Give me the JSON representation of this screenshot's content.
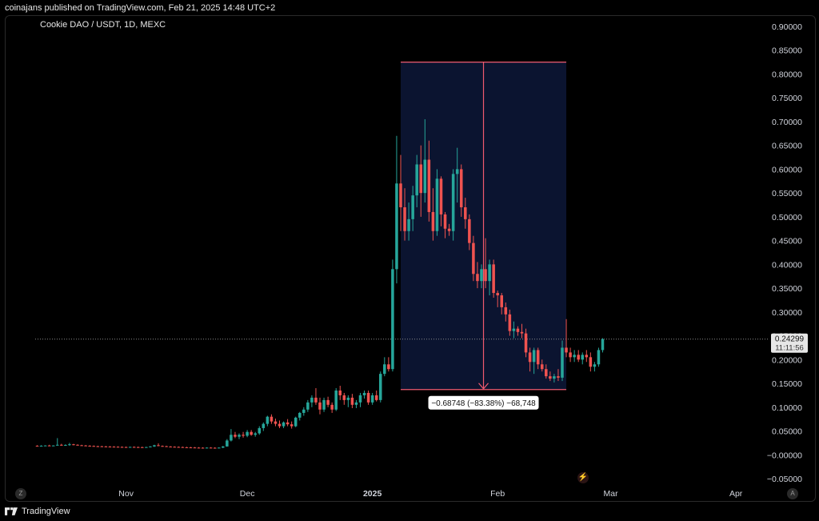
{
  "published_by": "coinajans published on TradingView.com, Feb 21, 2025 14:48 UTC+2",
  "symbol_title": "Cookie DAO / USDT, 1D, MEXC",
  "footer_brand": "TradingView",
  "time_axis_left_button": "Z",
  "price_axis_right_button": "A",
  "colors": {
    "bull": "#26a69a",
    "bear": "#ef5350",
    "measure_fill": "#0b1430",
    "measure_line": "#ef5a6f",
    "grid_text": "#d1d4dc",
    "background": "#000000"
  },
  "chart_data": {
    "type": "candlestick",
    "title": "Cookie DAO / USDT, 1D, MEXC",
    "interval": "1D",
    "exchange": "MEXC",
    "y_axis": {
      "side": "right",
      "ylim": [
        -0.05,
        0.9
      ],
      "tick_labels": [
        "0.90000",
        "0.85000",
        "0.80000",
        "0.75000",
        "0.70000",
        "0.65000",
        "0.60000",
        "0.55000",
        "0.50000",
        "0.45000",
        "0.40000",
        "0.35000",
        "0.30000",
        "0.25000",
        "0.20000",
        "0.15000",
        "0.10000",
        "0.05000",
        "−0.00000",
        "−0.05000"
      ],
      "tick_values": [
        0.9,
        0.85,
        0.8,
        0.75,
        0.7,
        0.65,
        0.6,
        0.55,
        0.5,
        0.45,
        0.4,
        0.35,
        0.3,
        0.25,
        0.2,
        0.15,
        0.1,
        0.05,
        0,
        -0.05
      ]
    },
    "x_axis": {
      "tick_labels": [
        {
          "label": "Nov",
          "day": 22,
          "bold": false
        },
        {
          "label": "Dec",
          "day": 52,
          "bold": false
        },
        {
          "label": "2025",
          "day": 83,
          "bold": true
        },
        {
          "label": "Feb",
          "day": 114,
          "bold": false
        },
        {
          "label": "Mar",
          "day": 142,
          "bold": false
        },
        {
          "label": "Apr",
          "day": 173,
          "bold": false
        }
      ],
      "day_range": [
        -0.5,
        180.5
      ]
    },
    "grid": false,
    "last_price": {
      "value": 0.24299,
      "label": "0.24299",
      "countdown": "11:11:56"
    },
    "measure": {
      "start_day": 90,
      "end_day": 131,
      "top_price": 0.825,
      "bottom_price": 0.137,
      "label": "−0.68748 (−83.38%) −68,748"
    },
    "candles": [
      {
        "d": 0,
        "o": 0.019,
        "h": 0.02,
        "l": 0.018,
        "c": 0.0185
      },
      {
        "d": 1,
        "o": 0.0185,
        "h": 0.02,
        "l": 0.018,
        "c": 0.019
      },
      {
        "d": 2,
        "o": 0.019,
        "h": 0.02,
        "l": 0.0185,
        "c": 0.0195
      },
      {
        "d": 3,
        "o": 0.0195,
        "h": 0.021,
        "l": 0.0185,
        "c": 0.019
      },
      {
        "d": 4,
        "o": 0.019,
        "h": 0.02,
        "l": 0.018,
        "c": 0.0195
      },
      {
        "d": 5,
        "o": 0.0195,
        "h": 0.035,
        "l": 0.019,
        "c": 0.021
      },
      {
        "d": 6,
        "o": 0.021,
        "h": 0.023,
        "l": 0.019,
        "c": 0.02
      },
      {
        "d": 7,
        "o": 0.02,
        "h": 0.022,
        "l": 0.019,
        "c": 0.0205
      },
      {
        "d": 8,
        "o": 0.0205,
        "h": 0.025,
        "l": 0.019,
        "c": 0.022
      },
      {
        "d": 9,
        "o": 0.022,
        "h": 0.023,
        "l": 0.02,
        "c": 0.021
      },
      {
        "d": 10,
        "o": 0.021,
        "h": 0.022,
        "l": 0.0195,
        "c": 0.02
      },
      {
        "d": 11,
        "o": 0.02,
        "h": 0.021,
        "l": 0.019,
        "c": 0.0195
      },
      {
        "d": 12,
        "o": 0.0195,
        "h": 0.0205,
        "l": 0.0185,
        "c": 0.019
      },
      {
        "d": 13,
        "o": 0.019,
        "h": 0.02,
        "l": 0.018,
        "c": 0.0185
      },
      {
        "d": 14,
        "o": 0.0185,
        "h": 0.0195,
        "l": 0.0175,
        "c": 0.018
      },
      {
        "d": 15,
        "o": 0.018,
        "h": 0.019,
        "l": 0.017,
        "c": 0.0178
      },
      {
        "d": 16,
        "o": 0.0178,
        "h": 0.0188,
        "l": 0.017,
        "c": 0.0175
      },
      {
        "d": 17,
        "o": 0.0175,
        "h": 0.0185,
        "l": 0.0165,
        "c": 0.0172
      },
      {
        "d": 18,
        "o": 0.0172,
        "h": 0.0182,
        "l": 0.0165,
        "c": 0.017
      },
      {
        "d": 19,
        "o": 0.017,
        "h": 0.018,
        "l": 0.016,
        "c": 0.0168
      },
      {
        "d": 20,
        "o": 0.0168,
        "h": 0.0178,
        "l": 0.016,
        "c": 0.0165
      },
      {
        "d": 21,
        "o": 0.0165,
        "h": 0.0175,
        "l": 0.0158,
        "c": 0.0163
      },
      {
        "d": 22,
        "o": 0.0163,
        "h": 0.0172,
        "l": 0.0155,
        "c": 0.016
      },
      {
        "d": 23,
        "o": 0.016,
        "h": 0.017,
        "l": 0.0155,
        "c": 0.0165
      },
      {
        "d": 24,
        "o": 0.0165,
        "h": 0.0175,
        "l": 0.0158,
        "c": 0.0162
      },
      {
        "d": 25,
        "o": 0.0162,
        "h": 0.0172,
        "l": 0.0155,
        "c": 0.016
      },
      {
        "d": 26,
        "o": 0.016,
        "h": 0.017,
        "l": 0.0152,
        "c": 0.0158
      },
      {
        "d": 27,
        "o": 0.0158,
        "h": 0.0168,
        "l": 0.015,
        "c": 0.0162
      },
      {
        "d": 28,
        "o": 0.0162,
        "h": 0.018,
        "l": 0.0155,
        "c": 0.0175
      },
      {
        "d": 29,
        "o": 0.0175,
        "h": 0.021,
        "l": 0.0165,
        "c": 0.02
      },
      {
        "d": 30,
        "o": 0.02,
        "h": 0.024,
        "l": 0.018,
        "c": 0.0185
      },
      {
        "d": 31,
        "o": 0.0185,
        "h": 0.0195,
        "l": 0.017,
        "c": 0.018
      },
      {
        "d": 32,
        "o": 0.018,
        "h": 0.019,
        "l": 0.0165,
        "c": 0.0172
      },
      {
        "d": 33,
        "o": 0.0172,
        "h": 0.0182,
        "l": 0.016,
        "c": 0.0168
      },
      {
        "d": 34,
        "o": 0.0168,
        "h": 0.0178,
        "l": 0.0158,
        "c": 0.0165
      },
      {
        "d": 35,
        "o": 0.0165,
        "h": 0.0175,
        "l": 0.0155,
        "c": 0.0162
      },
      {
        "d": 36,
        "o": 0.0162,
        "h": 0.0172,
        "l": 0.0152,
        "c": 0.0158
      },
      {
        "d": 37,
        "o": 0.0158,
        "h": 0.0168,
        "l": 0.015,
        "c": 0.0155
      },
      {
        "d": 38,
        "o": 0.0155,
        "h": 0.0165,
        "l": 0.0148,
        "c": 0.0153
      },
      {
        "d": 39,
        "o": 0.0153,
        "h": 0.0162,
        "l": 0.0145,
        "c": 0.015
      },
      {
        "d": 40,
        "o": 0.015,
        "h": 0.016,
        "l": 0.0142,
        "c": 0.0148
      },
      {
        "d": 41,
        "o": 0.0148,
        "h": 0.0158,
        "l": 0.014,
        "c": 0.0146
      },
      {
        "d": 42,
        "o": 0.0146,
        "h": 0.0156,
        "l": 0.014,
        "c": 0.015
      },
      {
        "d": 43,
        "o": 0.015,
        "h": 0.016,
        "l": 0.0143,
        "c": 0.0147
      },
      {
        "d": 44,
        "o": 0.0147,
        "h": 0.0157,
        "l": 0.014,
        "c": 0.0145
      },
      {
        "d": 45,
        "o": 0.0145,
        "h": 0.0155,
        "l": 0.0138,
        "c": 0.015
      },
      {
        "d": 46,
        "o": 0.015,
        "h": 0.0185,
        "l": 0.014,
        "c": 0.0175
      },
      {
        "d": 47,
        "o": 0.0175,
        "h": 0.033,
        "l": 0.017,
        "c": 0.03
      },
      {
        "d": 48,
        "o": 0.03,
        "h": 0.054,
        "l": 0.028,
        "c": 0.042
      },
      {
        "d": 49,
        "o": 0.042,
        "h": 0.048,
        "l": 0.035,
        "c": 0.038
      },
      {
        "d": 50,
        "o": 0.038,
        "h": 0.045,
        "l": 0.033,
        "c": 0.042
      },
      {
        "d": 51,
        "o": 0.042,
        "h": 0.048,
        "l": 0.036,
        "c": 0.04
      },
      {
        "d": 52,
        "o": 0.04,
        "h": 0.052,
        "l": 0.037,
        "c": 0.048
      },
      {
        "d": 53,
        "o": 0.048,
        "h": 0.052,
        "l": 0.04,
        "c": 0.042
      },
      {
        "d": 54,
        "o": 0.042,
        "h": 0.048,
        "l": 0.038,
        "c": 0.045
      },
      {
        "d": 55,
        "o": 0.045,
        "h": 0.06,
        "l": 0.042,
        "c": 0.056
      },
      {
        "d": 56,
        "o": 0.056,
        "h": 0.068,
        "l": 0.05,
        "c": 0.065
      },
      {
        "d": 57,
        "o": 0.065,
        "h": 0.082,
        "l": 0.06,
        "c": 0.08
      },
      {
        "d": 58,
        "o": 0.08,
        "h": 0.085,
        "l": 0.065,
        "c": 0.07
      },
      {
        "d": 59,
        "o": 0.07,
        "h": 0.076,
        "l": 0.06,
        "c": 0.065
      },
      {
        "d": 60,
        "o": 0.065,
        "h": 0.072,
        "l": 0.056,
        "c": 0.06
      },
      {
        "d": 61,
        "o": 0.06,
        "h": 0.07,
        "l": 0.056,
        "c": 0.068
      },
      {
        "d": 62,
        "o": 0.068,
        "h": 0.075,
        "l": 0.06,
        "c": 0.064
      },
      {
        "d": 63,
        "o": 0.064,
        "h": 0.07,
        "l": 0.055,
        "c": 0.06
      },
      {
        "d": 64,
        "o": 0.06,
        "h": 0.08,
        "l": 0.058,
        "c": 0.078
      },
      {
        "d": 65,
        "o": 0.078,
        "h": 0.09,
        "l": 0.072,
        "c": 0.088
      },
      {
        "d": 66,
        "o": 0.088,
        "h": 0.1,
        "l": 0.082,
        "c": 0.095
      },
      {
        "d": 67,
        "o": 0.095,
        "h": 0.115,
        "l": 0.09,
        "c": 0.11
      },
      {
        "d": 68,
        "o": 0.11,
        "h": 0.125,
        "l": 0.1,
        "c": 0.12
      },
      {
        "d": 69,
        "o": 0.12,
        "h": 0.14,
        "l": 0.105,
        "c": 0.11
      },
      {
        "d": 70,
        "o": 0.11,
        "h": 0.12,
        "l": 0.085,
        "c": 0.095
      },
      {
        "d": 71,
        "o": 0.095,
        "h": 0.12,
        "l": 0.09,
        "c": 0.115
      },
      {
        "d": 72,
        "o": 0.115,
        "h": 0.122,
        "l": 0.1,
        "c": 0.105
      },
      {
        "d": 73,
        "o": 0.105,
        "h": 0.11,
        "l": 0.088,
        "c": 0.095
      },
      {
        "d": 74,
        "o": 0.095,
        "h": 0.14,
        "l": 0.092,
        "c": 0.135
      },
      {
        "d": 75,
        "o": 0.135,
        "h": 0.145,
        "l": 0.115,
        "c": 0.125
      },
      {
        "d": 76,
        "o": 0.125,
        "h": 0.13,
        "l": 0.105,
        "c": 0.115
      },
      {
        "d": 77,
        "o": 0.115,
        "h": 0.125,
        "l": 0.1,
        "c": 0.12
      },
      {
        "d": 78,
        "o": 0.12,
        "h": 0.128,
        "l": 0.098,
        "c": 0.105
      },
      {
        "d": 79,
        "o": 0.105,
        "h": 0.115,
        "l": 0.098,
        "c": 0.11
      },
      {
        "d": 80,
        "o": 0.11,
        "h": 0.13,
        "l": 0.1,
        "c": 0.125
      },
      {
        "d": 81,
        "o": 0.125,
        "h": 0.135,
        "l": 0.118,
        "c": 0.13
      },
      {
        "d": 82,
        "o": 0.13,
        "h": 0.135,
        "l": 0.105,
        "c": 0.11
      },
      {
        "d": 83,
        "o": 0.11,
        "h": 0.13,
        "l": 0.105,
        "c": 0.125
      },
      {
        "d": 84,
        "o": 0.125,
        "h": 0.135,
        "l": 0.112,
        "c": 0.115
      },
      {
        "d": 85,
        "o": 0.115,
        "h": 0.175,
        "l": 0.11,
        "c": 0.17
      },
      {
        "d": 86,
        "o": 0.17,
        "h": 0.205,
        "l": 0.165,
        "c": 0.19
      },
      {
        "d": 87,
        "o": 0.19,
        "h": 0.205,
        "l": 0.175,
        "c": 0.18
      },
      {
        "d": 88,
        "o": 0.18,
        "h": 0.41,
        "l": 0.175,
        "c": 0.39
      },
      {
        "d": 89,
        "o": 0.39,
        "h": 0.67,
        "l": 0.36,
        "c": 0.57
      },
      {
        "d": 90,
        "o": 0.57,
        "h": 0.63,
        "l": 0.47,
        "c": 0.52
      },
      {
        "d": 91,
        "o": 0.52,
        "h": 0.56,
        "l": 0.45,
        "c": 0.47
      },
      {
        "d": 92,
        "o": 0.47,
        "h": 0.53,
        "l": 0.45,
        "c": 0.495
      },
      {
        "d": 93,
        "o": 0.495,
        "h": 0.565,
        "l": 0.47,
        "c": 0.545
      },
      {
        "d": 94,
        "o": 0.545,
        "h": 0.63,
        "l": 0.52,
        "c": 0.61
      },
      {
        "d": 95,
        "o": 0.61,
        "h": 0.65,
        "l": 0.5,
        "c": 0.55
      },
      {
        "d": 96,
        "o": 0.55,
        "h": 0.705,
        "l": 0.53,
        "c": 0.62
      },
      {
        "d": 97,
        "o": 0.62,
        "h": 0.66,
        "l": 0.49,
        "c": 0.51
      },
      {
        "d": 98,
        "o": 0.51,
        "h": 0.56,
        "l": 0.45,
        "c": 0.47
      },
      {
        "d": 99,
        "o": 0.47,
        "h": 0.6,
        "l": 0.46,
        "c": 0.58
      },
      {
        "d": 100,
        "o": 0.58,
        "h": 0.585,
        "l": 0.48,
        "c": 0.505
      },
      {
        "d": 101,
        "o": 0.505,
        "h": 0.51,
        "l": 0.455,
        "c": 0.475
      },
      {
        "d": 102,
        "o": 0.475,
        "h": 0.485,
        "l": 0.46,
        "c": 0.47
      },
      {
        "d": 103,
        "o": 0.47,
        "h": 0.6,
        "l": 0.45,
        "c": 0.59
      },
      {
        "d": 104,
        "o": 0.59,
        "h": 0.645,
        "l": 0.53,
        "c": 0.6
      },
      {
        "d": 105,
        "o": 0.6,
        "h": 0.61,
        "l": 0.5,
        "c": 0.52
      },
      {
        "d": 106,
        "o": 0.52,
        "h": 0.54,
        "l": 0.475,
        "c": 0.495
      },
      {
        "d": 107,
        "o": 0.495,
        "h": 0.505,
        "l": 0.43,
        "c": 0.445
      },
      {
        "d": 108,
        "o": 0.445,
        "h": 0.46,
        "l": 0.365,
        "c": 0.38
      },
      {
        "d": 109,
        "o": 0.38,
        "h": 0.405,
        "l": 0.35,
        "c": 0.365
      },
      {
        "d": 110,
        "o": 0.365,
        "h": 0.4,
        "l": 0.35,
        "c": 0.39
      },
      {
        "d": 111,
        "o": 0.39,
        "h": 0.455,
        "l": 0.35,
        "c": 0.365
      },
      {
        "d": 112,
        "o": 0.365,
        "h": 0.41,
        "l": 0.335,
        "c": 0.4
      },
      {
        "d": 113,
        "o": 0.4,
        "h": 0.41,
        "l": 0.33,
        "c": 0.34
      },
      {
        "d": 114,
        "o": 0.34,
        "h": 0.345,
        "l": 0.31,
        "c": 0.335
      },
      {
        "d": 115,
        "o": 0.335,
        "h": 0.34,
        "l": 0.295,
        "c": 0.31
      },
      {
        "d": 116,
        "o": 0.31,
        "h": 0.32,
        "l": 0.28,
        "c": 0.295
      },
      {
        "d": 117,
        "o": 0.295,
        "h": 0.305,
        "l": 0.25,
        "c": 0.26
      },
      {
        "d": 118,
        "o": 0.26,
        "h": 0.28,
        "l": 0.245,
        "c": 0.265
      },
      {
        "d": 119,
        "o": 0.265,
        "h": 0.27,
        "l": 0.25,
        "c": 0.258
      },
      {
        "d": 120,
        "o": 0.258,
        "h": 0.275,
        "l": 0.245,
        "c": 0.255
      },
      {
        "d": 121,
        "o": 0.255,
        "h": 0.265,
        "l": 0.205,
        "c": 0.215
      },
      {
        "d": 122,
        "o": 0.215,
        "h": 0.225,
        "l": 0.175,
        "c": 0.195
      },
      {
        "d": 123,
        "o": 0.195,
        "h": 0.225,
        "l": 0.17,
        "c": 0.22
      },
      {
        "d": 124,
        "o": 0.22,
        "h": 0.225,
        "l": 0.18,
        "c": 0.19
      },
      {
        "d": 125,
        "o": 0.19,
        "h": 0.2,
        "l": 0.175,
        "c": 0.18
      },
      {
        "d": 126,
        "o": 0.18,
        "h": 0.19,
        "l": 0.16,
        "c": 0.165
      },
      {
        "d": 127,
        "o": 0.165,
        "h": 0.175,
        "l": 0.155,
        "c": 0.16
      },
      {
        "d": 128,
        "o": 0.16,
        "h": 0.17,
        "l": 0.152,
        "c": 0.165
      },
      {
        "d": 129,
        "o": 0.165,
        "h": 0.18,
        "l": 0.155,
        "c": 0.162
      },
      {
        "d": 130,
        "o": 0.162,
        "h": 0.24,
        "l": 0.155,
        "c": 0.225
      },
      {
        "d": 131,
        "o": 0.225,
        "h": 0.285,
        "l": 0.205,
        "c": 0.215
      },
      {
        "d": 132,
        "o": 0.215,
        "h": 0.225,
        "l": 0.195,
        "c": 0.205
      },
      {
        "d": 133,
        "o": 0.205,
        "h": 0.22,
        "l": 0.195,
        "c": 0.21
      },
      {
        "d": 134,
        "o": 0.21,
        "h": 0.22,
        "l": 0.195,
        "c": 0.2
      },
      {
        "d": 135,
        "o": 0.2,
        "h": 0.215,
        "l": 0.19,
        "c": 0.21
      },
      {
        "d": 136,
        "o": 0.21,
        "h": 0.22,
        "l": 0.195,
        "c": 0.205
      },
      {
        "d": 137,
        "o": 0.205,
        "h": 0.215,
        "l": 0.175,
        "c": 0.185
      },
      {
        "d": 138,
        "o": 0.185,
        "h": 0.195,
        "l": 0.175,
        "c": 0.19
      },
      {
        "d": 139,
        "o": 0.19,
        "h": 0.225,
        "l": 0.185,
        "c": 0.22
      },
      {
        "d": 140,
        "o": 0.22,
        "h": 0.245,
        "l": 0.215,
        "c": 0.243
      }
    ]
  }
}
